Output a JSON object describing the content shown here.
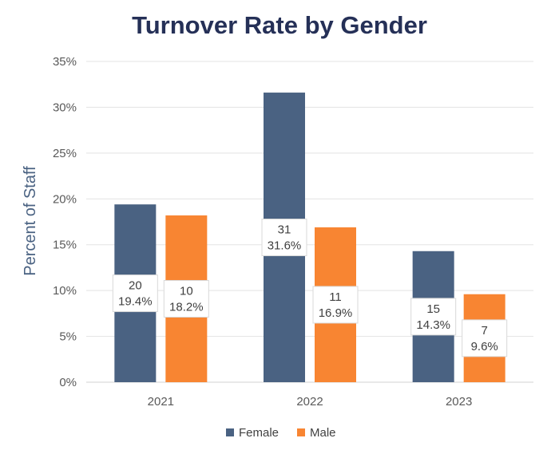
{
  "chart_data": {
    "type": "bar",
    "title": "Turnover Rate by Gender",
    "xlabel": "",
    "ylabel": "Percent of Staff",
    "categories": [
      "2021",
      "2022",
      "2023"
    ],
    "series": [
      {
        "name": "Female",
        "color": "#4a6282",
        "values": [
          19.4,
          31.6,
          14.3
        ],
        "counts": [
          "20",
          "31",
          "15"
        ],
        "labels": [
          "19.4%",
          "31.6%",
          "14.3%"
        ]
      },
      {
        "name": "Male",
        "color": "#f88532",
        "values": [
          18.2,
          16.9,
          9.6
        ],
        "counts": [
          "10",
          "11",
          "7"
        ],
        "labels": [
          "18.2%",
          "16.9%",
          "9.6%"
        ]
      }
    ],
    "ylim": [
      0,
      35
    ],
    "yticks": [
      0,
      5,
      10,
      15,
      20,
      25,
      30,
      35
    ],
    "ytick_labels": [
      "0%",
      "5%",
      "10%",
      "15%",
      "20%",
      "25%",
      "30%",
      "35%"
    ],
    "grid": true,
    "legend_position": "bottom"
  }
}
